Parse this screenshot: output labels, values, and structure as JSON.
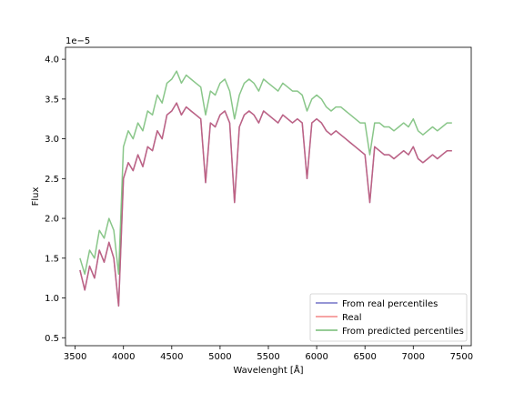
{
  "chart_data": {
    "type": "line",
    "title": "",
    "xlabel": "Wavelenght [Å]",
    "ylabel": "Flux",
    "offset_text": "1e−5",
    "xlim": [
      3400,
      7600
    ],
    "ylim": [
      0.4,
      4.15
    ],
    "x_ticks": [
      3500,
      4000,
      4500,
      5000,
      5500,
      6000,
      6500,
      7000,
      7500
    ],
    "x_tick_labels": [
      "3500",
      "4000",
      "4500",
      "5000",
      "5500",
      "6000",
      "6500",
      "7000",
      "7500"
    ],
    "y_ticks": [
      0.5,
      1.0,
      1.5,
      2.0,
      2.5,
      3.0,
      3.5,
      4.0
    ],
    "y_tick_labels": [
      "0.5",
      "1.0",
      "1.5",
      "2.0",
      "2.5",
      "3.0",
      "3.5",
      "4.0"
    ],
    "grid": false,
    "legend_position": "lower-right",
    "x": [
      3550,
      3600,
      3650,
      3700,
      3750,
      3800,
      3850,
      3900,
      3950,
      4000,
      4050,
      4100,
      4150,
      4200,
      4250,
      4300,
      4350,
      4400,
      4450,
      4500,
      4550,
      4600,
      4650,
      4700,
      4750,
      4800,
      4850,
      4900,
      4950,
      5000,
      5050,
      5100,
      5150,
      5200,
      5250,
      5300,
      5350,
      5400,
      5450,
      5500,
      5550,
      5600,
      5650,
      5700,
      5750,
      5800,
      5850,
      5900,
      5950,
      6000,
      6050,
      6100,
      6150,
      6200,
      6250,
      6300,
      6350,
      6400,
      6450,
      6500,
      6550,
      6600,
      6650,
      6700,
      6750,
      6800,
      6850,
      6900,
      6950,
      7000,
      7050,
      7100,
      7150,
      7200,
      7250,
      7300,
      7350,
      7400
    ],
    "series": [
      {
        "name": "From real percentiles",
        "color": "#3a3ab0",
        "values": [
          1.35,
          1.1,
          1.4,
          1.25,
          1.6,
          1.45,
          1.7,
          1.5,
          0.9,
          2.5,
          2.7,
          2.6,
          2.8,
          2.65,
          2.9,
          2.85,
          3.1,
          3.0,
          3.3,
          3.35,
          3.45,
          3.3,
          3.4,
          3.35,
          3.3,
          3.25,
          2.45,
          3.2,
          3.15,
          3.3,
          3.35,
          3.2,
          2.2,
          3.15,
          3.3,
          3.35,
          3.3,
          3.2,
          3.35,
          3.3,
          3.25,
          3.2,
          3.3,
          3.25,
          3.2,
          3.25,
          3.2,
          2.5,
          3.2,
          3.25,
          3.2,
          3.1,
          3.05,
          3.1,
          3.05,
          3.0,
          2.95,
          2.9,
          2.85,
          2.8,
          2.2,
          2.9,
          2.85,
          2.8,
          2.8,
          2.75,
          2.8,
          2.85,
          2.8,
          2.9,
          2.75,
          2.7,
          2.75,
          2.8,
          2.75,
          2.8,
          2.85,
          2.85
        ]
      },
      {
        "name": "Real",
        "color": "#ee5555",
        "values": [
          1.35,
          1.1,
          1.4,
          1.25,
          1.6,
          1.45,
          1.7,
          1.5,
          0.9,
          2.5,
          2.7,
          2.6,
          2.8,
          2.65,
          2.9,
          2.85,
          3.1,
          3.0,
          3.3,
          3.35,
          3.45,
          3.3,
          3.4,
          3.35,
          3.3,
          3.25,
          2.45,
          3.2,
          3.15,
          3.3,
          3.35,
          3.2,
          2.2,
          3.15,
          3.3,
          3.35,
          3.3,
          3.2,
          3.35,
          3.3,
          3.25,
          3.2,
          3.3,
          3.25,
          3.2,
          3.25,
          3.2,
          2.5,
          3.2,
          3.25,
          3.2,
          3.1,
          3.05,
          3.1,
          3.05,
          3.0,
          2.95,
          2.9,
          2.85,
          2.8,
          2.2,
          2.9,
          2.85,
          2.8,
          2.8,
          2.75,
          2.8,
          2.85,
          2.8,
          2.9,
          2.75,
          2.7,
          2.75,
          2.8,
          2.75,
          2.8,
          2.85,
          2.85
        ]
      },
      {
        "name": "From predicted percentiles",
        "color": "#3aa03a",
        "values": [
          1.5,
          1.3,
          1.6,
          1.5,
          1.85,
          1.75,
          2.0,
          1.85,
          1.3,
          2.9,
          3.1,
          3.0,
          3.2,
          3.1,
          3.35,
          3.3,
          3.55,
          3.45,
          3.7,
          3.75,
          3.85,
          3.7,
          3.8,
          3.75,
          3.7,
          3.65,
          3.3,
          3.6,
          3.55,
          3.7,
          3.75,
          3.6,
          3.25,
          3.55,
          3.7,
          3.75,
          3.7,
          3.6,
          3.75,
          3.7,
          3.65,
          3.6,
          3.7,
          3.65,
          3.6,
          3.6,
          3.55,
          3.35,
          3.5,
          3.55,
          3.5,
          3.4,
          3.35,
          3.4,
          3.4,
          3.35,
          3.3,
          3.25,
          3.2,
          3.2,
          2.8,
          3.2,
          3.2,
          3.15,
          3.15,
          3.1,
          3.15,
          3.2,
          3.15,
          3.25,
          3.1,
          3.05,
          3.1,
          3.15,
          3.1,
          3.15,
          3.2,
          3.2
        ]
      }
    ]
  }
}
